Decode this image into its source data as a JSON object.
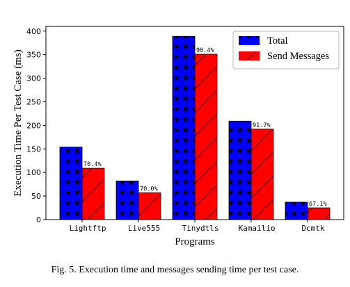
{
  "chart_data": {
    "type": "bar",
    "categories": [
      "Lightftp",
      "Live555",
      "Tinydtls",
      "Kamailio",
      "Dcmtk"
    ],
    "series": [
      {
        "name": "Total",
        "values": [
          154,
          82,
          389,
          209,
          37
        ],
        "color": "#0000ff",
        "pattern": "stars"
      },
      {
        "name": "Send Messages",
        "values": [
          109,
          57,
          351,
          192,
          25
        ],
        "color": "#ff0000",
        "pattern": "diagonal-hatch"
      }
    ],
    "data_labels": [
      "70.4%",
      "70.0%",
      "90.4%",
      "91.7%",
      "67.1%"
    ],
    "xlabel": "Programs",
    "ylabel": "Execution Time Per Test Case (ms)",
    "ylim": [
      0,
      410
    ],
    "yticks": [
      0,
      50,
      100,
      150,
      200,
      250,
      300,
      350,
      400
    ],
    "legend_position": "top-right",
    "grid": false
  },
  "caption": "Fig. 5.   Execution time and messages sending time per test case."
}
